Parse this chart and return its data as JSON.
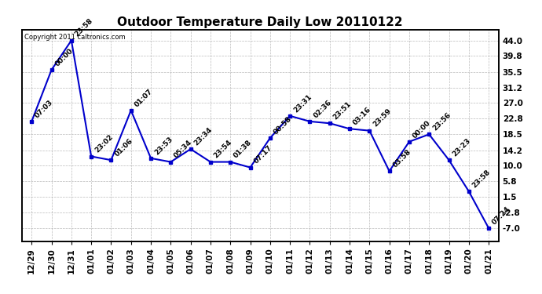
{
  "title": "Outdoor Temperature Daily Low 20110122",
  "copyright_text": "Copyright 2011 caltronics.com",
  "x_labels": [
    "12/29",
    "12/30",
    "12/31",
    "01/01",
    "01/02",
    "01/03",
    "01/04",
    "01/05",
    "01/06",
    "01/07",
    "01/08",
    "01/09",
    "01/10",
    "01/11",
    "01/12",
    "01/13",
    "01/14",
    "01/15",
    "01/16",
    "01/17",
    "01/18",
    "01/19",
    "01/20",
    "01/21"
  ],
  "y_values": [
    22.0,
    36.0,
    44.0,
    12.5,
    11.5,
    25.0,
    12.0,
    11.0,
    14.5,
    11.0,
    11.0,
    9.5,
    17.5,
    23.5,
    22.0,
    21.5,
    20.0,
    19.5,
    8.5,
    16.5,
    18.5,
    11.5,
    3.0,
    -7.0
  ],
  "point_labels": [
    "07:03",
    "00:00",
    "23:58",
    "23:02",
    "01:06",
    "01:07",
    "23:53",
    "05:34",
    "23:34",
    "23:54",
    "01:38",
    "07:17",
    "00:58",
    "23:31",
    "02:36",
    "23:51",
    "03:16",
    "23:59",
    "03:58",
    "00:00",
    "23:56",
    "23:23",
    "23:58",
    "07:24"
  ],
  "yticks": [
    44.0,
    39.8,
    35.5,
    31.2,
    27.0,
    22.8,
    18.5,
    14.2,
    10.0,
    5.8,
    1.5,
    -2.8,
    -7.0
  ],
  "ylim": [
    -10.5,
    47.0
  ],
  "line_color": "#0000cc",
  "marker_color": "#0000cc",
  "grid_color": "#aaaaaa",
  "bg_color": "#ffffff",
  "title_fontsize": 11,
  "label_fontsize": 6.5,
  "tick_fontsize": 7.5
}
